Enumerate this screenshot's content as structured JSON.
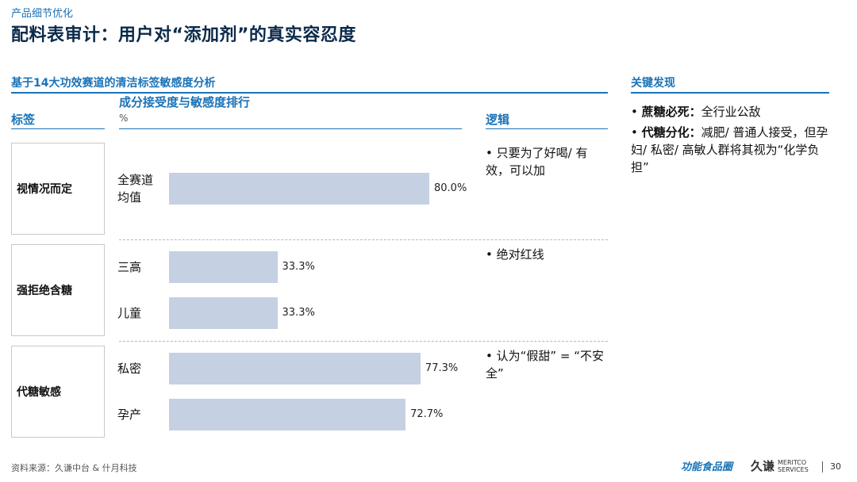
{
  "header": {
    "kicker": "产品细节优化",
    "title": "配料表审计：用户对“添加剂”的真实容忍度"
  },
  "section_title": "基于14大功效赛道的清洁标签敏感度分析",
  "columns": {
    "tag": "标签",
    "chart": "成分接受度与敏感度排行",
    "unit": "%",
    "logic": "逻辑"
  },
  "groups": [
    {
      "tag": "视情况而定",
      "logic": "• 只要为了好喝/ 有效，可以加"
    },
    {
      "tag": "强拒绝含糖",
      "logic": "• 绝对红线"
    },
    {
      "tag": "代糖敏感",
      "logic": "• 认为“假甜” = “不安全”"
    }
  ],
  "chart_data": {
    "type": "bar",
    "orientation": "horizontal",
    "title": "成分接受度与敏感度排行",
    "ylabel": "%",
    "categories": [
      "全赛道\n均值",
      "三高",
      "儿童",
      "私密",
      "孕产"
    ],
    "values": [
      80.0,
      33.3,
      33.3,
      77.3,
      72.7
    ],
    "value_labels": [
      "80.0%",
      "33.3%",
      "33.3%",
      "77.3%",
      "72.7%"
    ],
    "xlim": [
      0,
      100
    ],
    "grid": false,
    "bar_color": "#c5d0e2"
  },
  "key_findings": {
    "title": "关键发现",
    "items": [
      {
        "bold": "蔗糖必死：",
        "text": "全行业公敌"
      },
      {
        "bold": "代糖分化：",
        "text": "减肥/ 普通人接受，但孕妇/ 私密/ 高敏人群将其视为“化学负担”"
      }
    ]
  },
  "footer": {
    "source": "资料来源：久谦中台 & 什月科技",
    "logo_left": "功能食品圈",
    "logo_right": "久谦",
    "logo_right_sub1": "MERITCO",
    "logo_right_sub2": "SERVICES",
    "page_number": "30"
  },
  "colors": {
    "accent": "#1a73b8",
    "title": "#0b2a4a",
    "bar": "#c5d0e2"
  }
}
